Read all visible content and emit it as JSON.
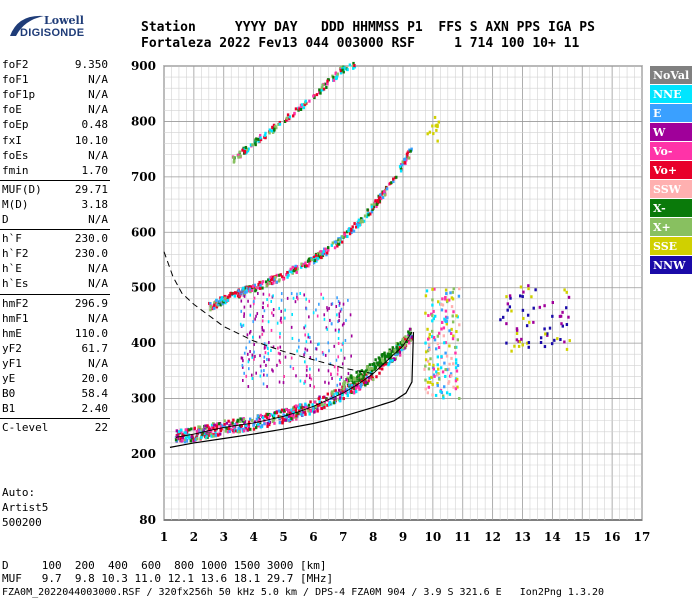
{
  "logo": {
    "top": "Lowell",
    "bottom": "DIGISONDE"
  },
  "header": {
    "row1": "Station     YYYY DAY   DDD HHMMSS P1  FFS S AXN PPS IGA PS",
    "row2": "Fortaleza 2022 Fev13 044 003000 RSF     1 714 100 10+ 11"
  },
  "parameters": [
    {
      "k": "foF2",
      "v": "9.350"
    },
    {
      "k": "foF1",
      "v": "N/A"
    },
    {
      "k": "foF1p",
      "v": "N/A"
    },
    {
      "k": "foE",
      "v": "N/A"
    },
    {
      "k": "foEp",
      "v": "0.48"
    },
    {
      "k": "fxI",
      "v": "10.10"
    },
    {
      "k": "foEs",
      "v": "N/A"
    },
    {
      "k": "fmin",
      "v": "1.70"
    },
    {
      "k": "MUF(D)",
      "v": "29.71"
    },
    {
      "k": "M(D)",
      "v": "3.18"
    },
    {
      "k": "D",
      "v": "N/A"
    },
    {
      "k": "h`F",
      "v": "230.0"
    },
    {
      "k": "h`F2",
      "v": "230.0"
    },
    {
      "k": "h`E",
      "v": "N/A"
    },
    {
      "k": "h`Es",
      "v": "N/A"
    },
    {
      "k": "hmF2",
      "v": "296.9"
    },
    {
      "k": "hmF1",
      "v": "N/A"
    },
    {
      "k": "hmE",
      "v": "110.0"
    },
    {
      "k": "yF2",
      "v": "61.7"
    },
    {
      "k": "yF1",
      "v": "N/A"
    },
    {
      "k": "yE",
      "v": "20.0"
    },
    {
      "k": "B0",
      "v": "58.4"
    },
    {
      "k": "B1",
      "v": "2.40"
    },
    {
      "k": "C-level",
      "v": "22"
    }
  ],
  "auto": [
    "Auto:",
    "Artist5",
    "500200"
  ],
  "legend": [
    {
      "label": "NoVal",
      "color": "#808080"
    },
    {
      "label": "NNE",
      "color": "#00e5ff"
    },
    {
      "label": "E",
      "color": "#3aa0ff"
    },
    {
      "label": "W",
      "color": "#a0009a"
    },
    {
      "label": "Vo-",
      "color": "#ff33a8"
    },
    {
      "label": "Vo+",
      "color": "#e8002a"
    },
    {
      "label": "SSW",
      "color": "#ffb0b0"
    },
    {
      "label": "X-",
      "color": "#0a7a0a"
    },
    {
      "label": "X+",
      "color": "#88c060"
    },
    {
      "label": "SSE",
      "color": "#d0d000"
    },
    {
      "label": "NNW",
      "color": "#1a0aa8"
    }
  ],
  "footer": {
    "row1": "D     100  200  400  600  800 1000 1500 3000 [km]",
    "row2": "MUF   9.7  9.8 10.3 11.0 12.1 13.6 18.1 29.7 [MHz]",
    "row3": "FZA0M_2022044003000.RSF / 320fx256h 50 kHz 5.0 km / DPS-4 FZA0M 904 / 3.9 S 321.6 E   Ion2Png 1.3.20"
  },
  "chart_data": {
    "type": "scatter",
    "title": "",
    "xlabel": "",
    "ylabel": "",
    "xlim": [
      1,
      17
    ],
    "ylim": [
      80,
      900
    ],
    "x_ticks": [
      1,
      2,
      3,
      4,
      5,
      6,
      7,
      8,
      9,
      10,
      11,
      12,
      13,
      14,
      15,
      16,
      17
    ],
    "y_ticks": [
      80,
      200,
      300,
      400,
      500,
      600,
      700,
      800,
      900
    ],
    "grid": true,
    "series": [
      {
        "name": "O-trace F2",
        "x": [
          1.4,
          2.0,
          2.5,
          3.0,
          3.5,
          4.0,
          4.5,
          5.0,
          5.5,
          6.0,
          6.5,
          7.0,
          7.5,
          8.0,
          8.5,
          9.0,
          9.3
        ],
        "y": [
          230,
          236,
          242,
          248,
          252,
          256,
          262,
          268,
          276,
          286,
          298,
          310,
          326,
          345,
          370,
          395,
          420
        ]
      },
      {
        "name": "2nd hop",
        "x": [
          2.5,
          3.0,
          3.5,
          4.0,
          4.5,
          5.0,
          5.5,
          6.0,
          6.5,
          7.0,
          7.5,
          8.0,
          8.5,
          9.0,
          9.3
        ],
        "y": [
          465,
          478,
          490,
          500,
          510,
          522,
          535,
          550,
          568,
          590,
          615,
          645,
          680,
          722,
          750
        ]
      },
      {
        "name": "3rd hop",
        "x": [
          3.3,
          4.0,
          4.5,
          5.0,
          5.5,
          6.0,
          6.5,
          7.0,
          7.4
        ],
        "y": [
          730,
          760,
          780,
          800,
          822,
          845,
          870,
          895,
          900
        ]
      },
      {
        "name": "X-trace",
        "x": [
          7.0,
          7.5,
          8.0,
          8.5,
          9.0,
          9.3
        ],
        "y": [
          325,
          340,
          358,
          378,
          400,
          420
        ]
      },
      {
        "name": "profile",
        "x": [
          1.2,
          2.0,
          3.0,
          4.0,
          5.0,
          6.0,
          7.0,
          8.0,
          8.7,
          9.1,
          9.3,
          9.35
        ],
        "y": [
          212,
          220,
          228,
          236,
          245,
          255,
          268,
          284,
          296,
          310,
          330,
          420
        ]
      },
      {
        "name": "dashed MUF",
        "x": [
          1.0,
          1.3,
          1.6,
          2.0,
          3.0,
          4.0,
          5.0,
          6.0,
          7.0,
          8.0
        ],
        "y": [
          565,
          520,
          490,
          470,
          430,
          404,
          385,
          370,
          355,
          345
        ]
      }
    ]
  }
}
